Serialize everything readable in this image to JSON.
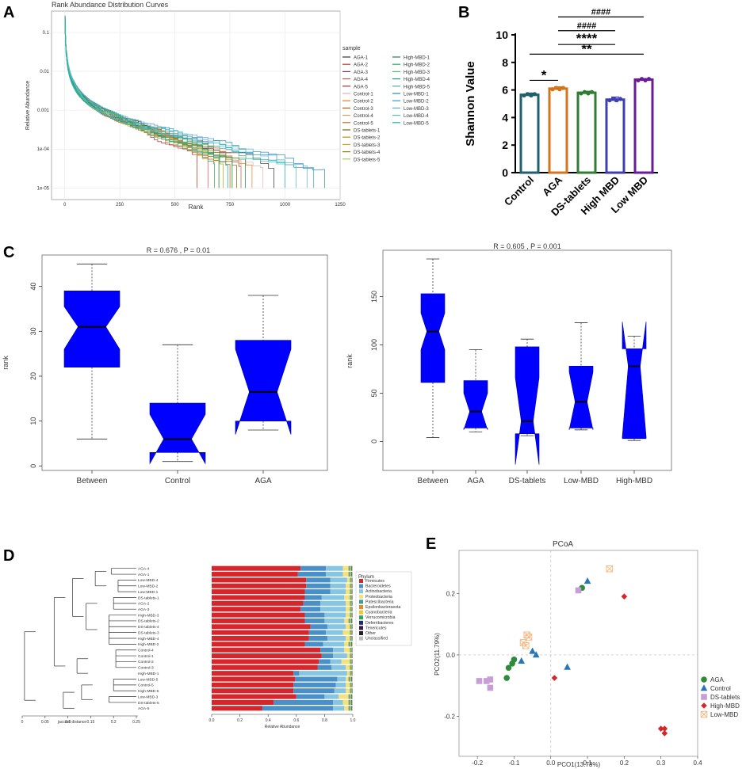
{
  "panel_labels": {
    "a": "A",
    "b": "B",
    "c": "C",
    "d": "D",
    "e": "E"
  },
  "chart_data": [
    {
      "type": "line",
      "panel": "A",
      "title": "Rank Abundance Distribution Curves",
      "xlabel": "Rank",
      "ylabel": "Relative Abundance",
      "xlim": [
        -60,
        1250
      ],
      "ylog": true,
      "ylim_log10": [
        -5.3,
        -0.45
      ],
      "x_ticks": [
        0,
        250,
        500,
        750,
        1000,
        1250
      ],
      "x_tick_labels": [
        "0",
        "250",
        "500",
        "750",
        "1000",
        "1250"
      ],
      "y_ticks_log10": [
        -1,
        -2,
        -3,
        -4,
        -5
      ],
      "y_tick_labels": [
        "0.1",
        "0.01",
        "0.001",
        "1e-04",
        "1e-05"
      ],
      "legend_title": "sample",
      "series": [
        {
          "name": "AGA-1",
          "color": "#333333",
          "end_rank": 950
        },
        {
          "name": "AGA-2",
          "color": "#c0392b",
          "end_rank": 700
        },
        {
          "name": "AGA-3",
          "color": "#7b3f5b",
          "end_rank": 800
        },
        {
          "name": "AGA-4",
          "color": "#d9534f",
          "end_rank": 650
        },
        {
          "name": "AGA-5",
          "color": "#a93226",
          "end_rank": 600
        },
        {
          "name": "Control-1",
          "color": "#e6b0aa",
          "end_rank": 900
        },
        {
          "name": "Control-2",
          "color": "#e67e22",
          "end_rank": 850
        },
        {
          "name": "Control-3",
          "color": "#d35400",
          "end_rank": 750
        },
        {
          "name": "Control-4",
          "color": "#e59866",
          "end_rank": 800
        },
        {
          "name": "Control-5",
          "color": "#ca6f1e",
          "end_rank": 700
        },
        {
          "name": "DS-tablets-1",
          "color": "#7d6608",
          "end_rank": 780
        },
        {
          "name": "DS-tablets-2",
          "color": "#b7950b",
          "end_rank": 720
        },
        {
          "name": "DS-tablets-3",
          "color": "#d4ac0d",
          "end_rank": 680
        },
        {
          "name": "DS-tablets-4",
          "color": "#9a7d0a",
          "end_rank": 760
        },
        {
          "name": "DS-tablets-5",
          "color": "#a9cc52",
          "end_rank": 700
        },
        {
          "name": "High-MBD-1",
          "color": "#1e8449",
          "end_rank": 820
        },
        {
          "name": "High-MBD-2",
          "color": "#27ae60",
          "end_rank": 760
        },
        {
          "name": "High-MBD-3",
          "color": "#52be80",
          "end_rank": 700
        },
        {
          "name": "High-MBD-4",
          "color": "#17a589",
          "end_rank": 740
        },
        {
          "name": "High-MBD-5",
          "color": "#45b39d",
          "end_rank": 680
        },
        {
          "name": "Low-MBD-1",
          "color": "#2e86c1",
          "end_rank": 1180
        },
        {
          "name": "Low-MBD-2",
          "color": "#3498db",
          "end_rank": 1130
        },
        {
          "name": "Low-MBD-3",
          "color": "#5dade2",
          "end_rank": 1100
        },
        {
          "name": "Low-MBD-4",
          "color": "#48c9b0",
          "end_rank": 1050
        },
        {
          "name": "Low-MBD-5",
          "color": "#1abc9c",
          "end_rank": 1000
        }
      ]
    },
    {
      "type": "bar",
      "panel": "B",
      "categories": [
        "Control",
        "AGA",
        "DS-tablets",
        "High MBD",
        "Low MBD"
      ],
      "values": [
        5.65,
        6.1,
        5.8,
        5.3,
        6.75
      ],
      "errors": [
        0.12,
        0.12,
        0.1,
        0.18,
        0.07
      ],
      "colors": [
        "#1f5f6e",
        "#d3741c",
        "#2e7d32",
        "#3f3fb0",
        "#6a1b9a"
      ],
      "ylabel": "Shannon Value",
      "ylim": [
        0,
        10
      ],
      "y_ticks": [
        0,
        2,
        4,
        6,
        8,
        10
      ],
      "significance": [
        {
          "from": 0,
          "to": 1,
          "label": "*"
        },
        {
          "from": 0,
          "to": 4,
          "label": "**"
        },
        {
          "from": 1,
          "to": 3,
          "label": "****"
        },
        {
          "from": 1,
          "to": 3,
          "label": "####"
        },
        {
          "from": 1,
          "to": 4,
          "label": "####"
        }
      ]
    },
    {
      "type": "box",
      "panel": "C-left",
      "title": "R = 0.676 ,  P = 0.01",
      "ylabel": "rank",
      "ylim": [
        -1,
        47
      ],
      "y_ticks": [
        0,
        10,
        20,
        30,
        40
      ],
      "categories": [
        "Between",
        "Control",
        "AGA"
      ],
      "boxes": [
        {
          "min": 6,
          "q1": 22,
          "median": 31,
          "q3": 39,
          "max": 45,
          "notch_low": 26,
          "notch_high": 35.5
        },
        {
          "min": 1,
          "q1": 3,
          "median": 6,
          "q3": 14,
          "max": 27,
          "notch_low": 0.5,
          "notch_high": 11.5
        },
        {
          "min": 8,
          "q1": 10,
          "median": 16.5,
          "q3": 28,
          "max": 38,
          "notch_low": 7,
          "notch_high": 26
        }
      ],
      "box_color": "#0000ff"
    },
    {
      "type": "box",
      "panel": "C-right",
      "title": "R = 0.605 ,  P = 0.001",
      "ylabel": "rank",
      "ylim": [
        -30,
        198
      ],
      "y_ticks": [
        0,
        50,
        100,
        150
      ],
      "categories": [
        "Between",
        "AGA",
        "DS-tablets",
        "Low-MBD",
        "High-MBD"
      ],
      "boxes": [
        {
          "min": 4,
          "q1": 61,
          "median": 114,
          "q3": 153,
          "max": 189,
          "notch_low": 95,
          "notch_high": 133
        },
        {
          "min": 10,
          "q1": 14,
          "median": 31,
          "q3": 63,
          "max": 95,
          "notch_low": 12,
          "notch_high": 50
        },
        {
          "min": 6,
          "q1": 8,
          "median": 21,
          "q3": 98,
          "max": 106,
          "notch_low": -24,
          "notch_high": 66
        },
        {
          "min": 12,
          "q1": 14,
          "median": 41,
          "q3": 78,
          "max": 123,
          "notch_low": 12,
          "notch_high": 72
        },
        {
          "min": 1,
          "q1": 3,
          "median": 78,
          "q3": 96,
          "max": 109,
          "notch_low": 5,
          "notch_high": 124
        }
      ],
      "box_color": "#0000ff"
    },
    {
      "type": "dendrogram+stacked-bar",
      "panel": "D",
      "samples": [
        "AGA-4",
        "AGA-1",
        "Low-MBD-4",
        "Low-MBD-2",
        "Low-MBD-1",
        "DS-tablets-1",
        "AGA-2",
        "AGA-3",
        "High-MBD-3",
        "DS-tablets-2",
        "DS-tablets-4",
        "DS-tablets-3",
        "High-MBD-4",
        "High-MBD-2",
        "Control-4",
        "Control-1",
        "Control-2",
        "Control-3",
        "High-MBD-1",
        "Low-MBD-5",
        "Control-5",
        "High-MBD-5",
        "Low-MBD-3",
        "DS-tablets-5",
        "AGA-5"
      ],
      "dendro_xlabel": "jaccard distance",
      "dendro_x_ticks": [
        0.25,
        0.2,
        0.15,
        0.1,
        0.05,
        0
      ],
      "dendro_x_tick_labels": [
        "0",
        "0.05",
        "0.1",
        "0.15",
        "0.2",
        "0.25"
      ],
      "bar_xlabel": "Relative Abundance",
      "bar_x_ticks": [
        "0.0",
        "0.2",
        "0.4",
        "0.6",
        "0.8",
        "1.0"
      ],
      "legend_title": "Phylum",
      "phyla": [
        "Firmicutes",
        "Bacteroidetes",
        "Actinobacteria",
        "Proteobacteria",
        "Patescibacteria",
        "Epsilonbacteraeota",
        "Cyanobacteria",
        "Verrucomicrobia",
        "Deferribacteres",
        "Tenericutes",
        "Other",
        "Unclassified"
      ],
      "phylum_colors": [
        "#d7262b",
        "#4a90c8",
        "#86c6e2",
        "#f6e27a",
        "#3a9e8f",
        "#e08a2a",
        "#f3c623",
        "#2eaa56",
        "#1b2b6b",
        "#3b1a4a",
        "#222222",
        "#bdbdbd"
      ],
      "firmicutes": [
        0.63,
        0.61,
        0.67,
        0.67,
        0.66,
        0.66,
        0.65,
        0.63,
        0.66,
        0.66,
        0.7,
        0.69,
        0.69,
        0.66,
        0.77,
        0.78,
        0.76,
        0.75,
        0.58,
        0.59,
        0.58,
        0.58,
        0.6,
        0.44,
        0.36
      ],
      "bacteroidetes": [
        0.18,
        0.2,
        0.17,
        0.17,
        0.18,
        0.12,
        0.12,
        0.14,
        0.14,
        0.14,
        0.12,
        0.12,
        0.13,
        0.13,
        0.09,
        0.08,
        0.08,
        0.1,
        0.04,
        0.3,
        0.3,
        0.29,
        0.2,
        0.42,
        0.5
      ],
      "actinobacteria": [
        0.12,
        0.12,
        0.12,
        0.11,
        0.11,
        0.16,
        0.18,
        0.18,
        0.15,
        0.14,
        0.13,
        0.12,
        0.13,
        0.15,
        0.08,
        0.1,
        0.08,
        0.1,
        0.34,
        0.06,
        0.07,
        0.08,
        0.1,
        0.07,
        0.08
      ],
      "proteobacteria": [
        0.04,
        0.04,
        0.02,
        0.03,
        0.03,
        0.04,
        0.03,
        0.03,
        0.03,
        0.03,
        0.03,
        0.05,
        0.03,
        0.03,
        0.04,
        0.02,
        0.06,
        0.03,
        0.02,
        0.02,
        0.03,
        0.03,
        0.07,
        0.04,
        0.03
      ],
      "dendro_ylabel_hidden": ""
    },
    {
      "type": "scatter",
      "panel": "E",
      "title": "PCoA",
      "xlabel": "PCO1(13.73%)",
      "ylabel": "PCO2(11.79%)",
      "xlim": [
        -0.25,
        0.4
      ],
      "ylim": [
        -0.33,
        0.34
      ],
      "x_ticks": [
        -0.2,
        -0.1,
        0,
        0.1,
        0.2,
        0.3,
        0.4
      ],
      "x_tick_labels": [
        "-0.2",
        "-0.1",
        "0.0",
        "0.1",
        "0.2",
        "0.3",
        "0.4"
      ],
      "y_ticks": [
        -0.2,
        0,
        0.2
      ],
      "y_tick_labels": [
        "-0.2",
        "0.0",
        "0.2"
      ],
      "series": [
        {
          "name": "AGA",
          "color": "#2e8b3a",
          "shape": "circle",
          "points": [
            [
              -0.12,
              -0.075
            ],
            [
              -0.115,
              -0.042
            ],
            [
              -0.105,
              -0.028
            ],
            [
              -0.1,
              -0.015
            ],
            [
              0.085,
              0.218
            ]
          ]
        },
        {
          "name": "Control",
          "color": "#2a75b3",
          "shape": "triangle",
          "points": [
            [
              0.1,
              0.24
            ],
            [
              -0.05,
              0.012
            ],
            [
              -0.08,
              -0.02
            ],
            [
              -0.04,
              0.0
            ],
            [
              0.045,
              -0.04
            ]
          ]
        },
        {
          "name": "DS-tablets",
          "color": "#c79fd6",
          "shape": "square",
          "points": [
            [
              -0.195,
              -0.085
            ],
            [
              -0.175,
              -0.085
            ],
            [
              -0.165,
              -0.107
            ],
            [
              -0.165,
              -0.08
            ],
            [
              0.075,
              0.21
            ]
          ]
        },
        {
          "name": "High-MBD",
          "color": "#d62728",
          "shape": "diamond",
          "points": [
            [
              0.2,
              0.19
            ],
            [
              0.01,
              -0.075
            ],
            [
              0.3,
              -0.24
            ],
            [
              0.31,
              -0.24
            ],
            [
              0.31,
              -0.255
            ]
          ]
        },
        {
          "name": "Low-MBD",
          "color": "#f7b27a",
          "shape": "openbox",
          "points": [
            [
              0.16,
              0.28
            ],
            [
              -0.065,
              0.065
            ],
            [
              -0.06,
              0.058
            ],
            [
              -0.075,
              0.04
            ],
            [
              -0.068,
              0.03
            ]
          ]
        }
      ]
    }
  ]
}
